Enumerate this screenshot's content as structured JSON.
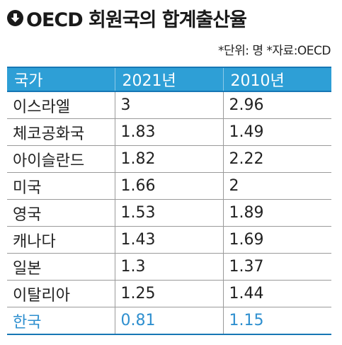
{
  "title": "OECD 회원국의 합계출산율",
  "title_icon": "down-arrow-circle-icon",
  "source": "*단위: 명 *자료:OECD",
  "colors": {
    "header_bg": "#2e9fd6",
    "header_border": "#1677b5",
    "highlight_text": "#2e8fcf"
  },
  "table": {
    "headers": [
      "국가",
      "2021년",
      "2010년"
    ],
    "rows": [
      {
        "country": "이스라엘",
        "y2021": "3",
        "y2010": "2.96"
      },
      {
        "country": "체코공화국",
        "y2021": "1.83",
        "y2010": "1.49"
      },
      {
        "country": "아이슬란드",
        "y2021": "1.82",
        "y2010": "2.22"
      },
      {
        "country": "미국",
        "y2021": "1.66",
        "y2010": "2"
      },
      {
        "country": "영국",
        "y2021": "1.53",
        "y2010": "1.89"
      },
      {
        "country": "캐나다",
        "y2021": "1.43",
        "y2010": "1.69"
      },
      {
        "country": "일본",
        "y2021": "1.3",
        "y2010": "1.37"
      },
      {
        "country": "이탈리아",
        "y2021": "1.25",
        "y2010": "1.44"
      },
      {
        "country": "한국",
        "y2021": "0.81",
        "y2010": "1.15",
        "highlight": true
      }
    ]
  }
}
